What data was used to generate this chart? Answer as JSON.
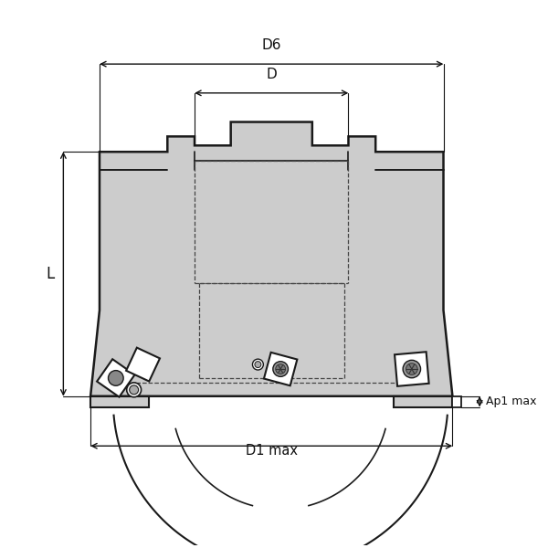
{
  "bg_color": "#ffffff",
  "line_color": "#1a1a1a",
  "fill_color": "#cccccc",
  "dim_color": "#111111",
  "fig_width": 6.0,
  "fig_height": 6.0,
  "labels": {
    "D6": "D6",
    "D": "D",
    "L": "L",
    "D1max": "D1 max",
    "Ap1max": "Ap1 max"
  }
}
